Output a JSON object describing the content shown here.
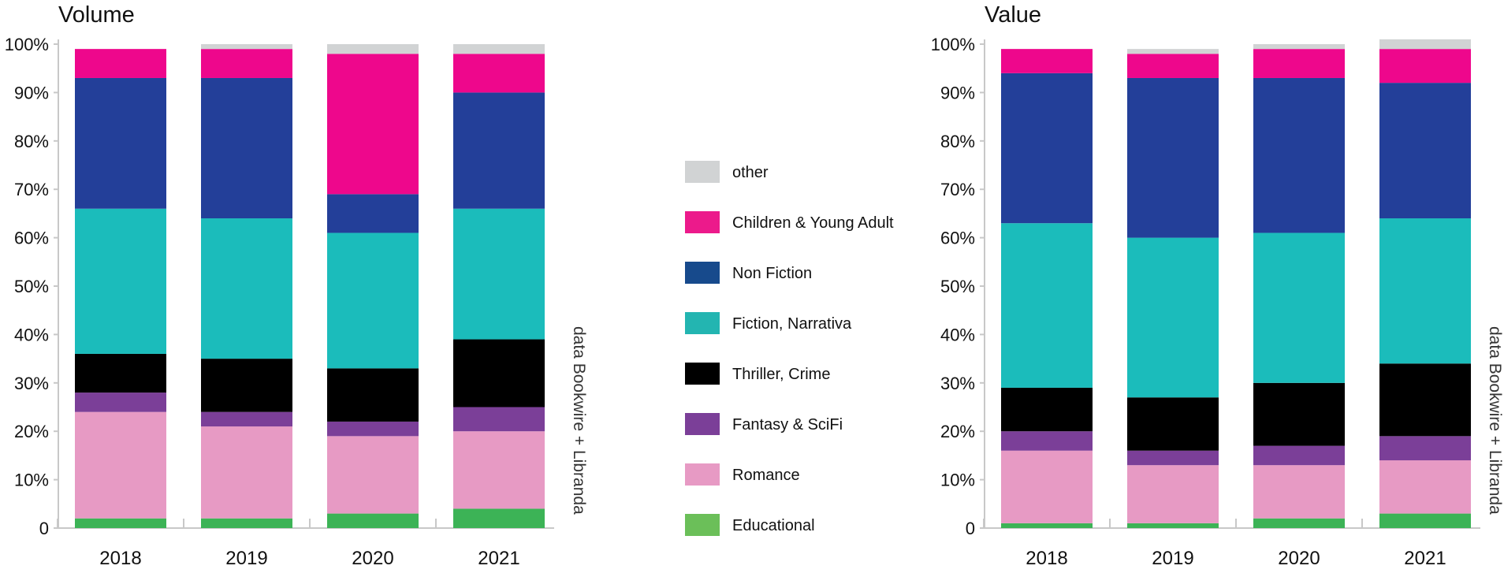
{
  "source_note": "data Bookwire + Libranda",
  "legend": {
    "position": "center",
    "items": [
      {
        "label": "other",
        "color": "#d1d3d4"
      },
      {
        "label": "Children & Young Adult",
        "color": "#ec1a8b"
      },
      {
        "label": "Non Fiction",
        "color": "#174a8c"
      },
      {
        "label": "Fiction, Narrativa",
        "color": "#23b5b1"
      },
      {
        "label": "Thriller, Crime",
        "color": "#000000"
      },
      {
        "label": "Fantasy & SciFi",
        "color": "#7b3f98"
      },
      {
        "label": "Romance",
        "color": "#e79ac4"
      },
      {
        "label": "Educational",
        "color": "#6bbf59"
      }
    ]
  },
  "chart_data": [
    {
      "type": "bar",
      "stacked": true,
      "title": "Volume",
      "xlabel": "",
      "ylabel": "",
      "ylim": [
        0,
        100
      ],
      "yticks": [
        "0",
        "10%",
        "20%",
        "30%",
        "40%",
        "50%",
        "60%",
        "70%",
        "80%",
        "90%",
        "100%"
      ],
      "grid": false,
      "categories": [
        "2018",
        "2019",
        "2020",
        "2021"
      ],
      "series": [
        {
          "name": "Educational",
          "color": "#3cb356",
          "values": [
            2,
            2,
            3,
            4
          ]
        },
        {
          "name": "Romance",
          "color": "#e79ac4",
          "values": [
            22,
            19,
            16,
            16
          ]
        },
        {
          "name": "Fantasy & SciFi",
          "color": "#7b3f98",
          "values": [
            4,
            3,
            3,
            5
          ]
        },
        {
          "name": "Thriller, Crime",
          "color": "#000000",
          "values": [
            8,
            11,
            11,
            14
          ]
        },
        {
          "name": "Fiction, Narrativa",
          "color": "#1bbcbb",
          "values": [
            30,
            29,
            28,
            27
          ]
        },
        {
          "name": "Non Fiction",
          "color": "#233f99",
          "values": [
            27,
            29,
            8,
            24
          ]
        },
        {
          "name": "Children & Young Adult",
          "color": "#ee078c",
          "values": [
            6,
            6,
            29,
            8
          ]
        },
        {
          "name": "other",
          "color": "#d1d3d4",
          "values": [
            0,
            1,
            2,
            2
          ]
        }
      ]
    },
    {
      "type": "bar",
      "stacked": true,
      "title": "Value",
      "xlabel": "",
      "ylabel": "",
      "ylim": [
        0,
        100
      ],
      "yticks": [
        "0",
        "10%",
        "20%",
        "30%",
        "40%",
        "50%",
        "60%",
        "70%",
        "80%",
        "90%",
        "100%"
      ],
      "grid": false,
      "categories": [
        "2018",
        "2019",
        "2020",
        "2021"
      ],
      "series": [
        {
          "name": "Educational",
          "color": "#3cb356",
          "values": [
            1,
            1,
            2,
            3
          ]
        },
        {
          "name": "Romance",
          "color": "#e79ac4",
          "values": [
            15,
            12,
            11,
            11
          ]
        },
        {
          "name": "Fantasy & SciFi",
          "color": "#7b3f98",
          "values": [
            4,
            3,
            4,
            5
          ]
        },
        {
          "name": "Thriller, Crime",
          "color": "#000000",
          "values": [
            9,
            11,
            13,
            15
          ]
        },
        {
          "name": "Fiction, Narrativa",
          "color": "#1bbcbb",
          "values": [
            34,
            33,
            31,
            30
          ]
        },
        {
          "name": "Non Fiction",
          "color": "#233f99",
          "values": [
            31,
            33,
            32,
            28
          ]
        },
        {
          "name": "Children & Young Adult",
          "color": "#ee078c",
          "values": [
            5,
            5,
            6,
            7
          ]
        },
        {
          "name": "other",
          "color": "#d1d3d4",
          "values": [
            0,
            1,
            1,
            2
          ]
        }
      ]
    }
  ]
}
